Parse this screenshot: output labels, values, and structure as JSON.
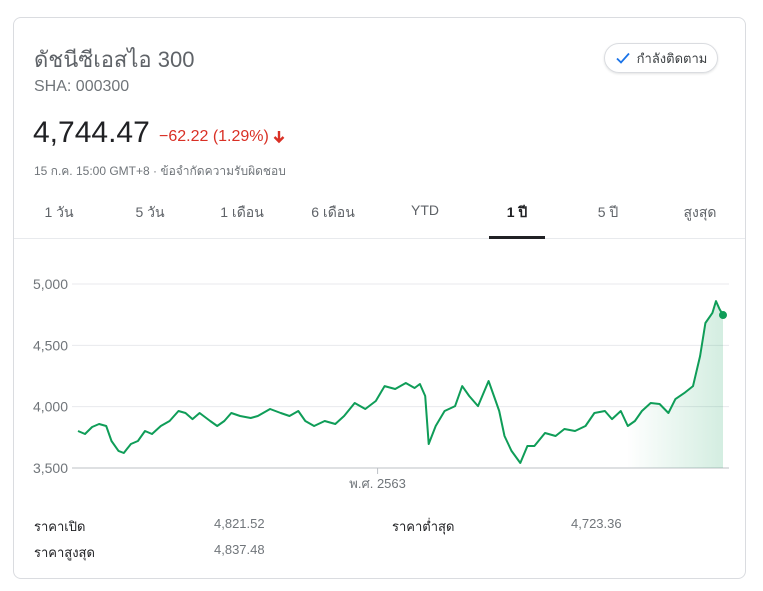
{
  "header": {
    "title": "ดัชนีซีเอสไอ 300",
    "ticker": "SHA: 000300",
    "follow_label": "กำลังติดตาม"
  },
  "quote": {
    "price": "4,744.47",
    "change": "−62.22 (1.29%)",
    "direction": "down",
    "timestamp": "15 ก.ค. 15:00 GMT+8 · ",
    "disclaimer": "ข้อจำกัดความรับผิดชอบ"
  },
  "tabs": [
    {
      "label": "1 วัน"
    },
    {
      "label": "5 วัน"
    },
    {
      "label": "1 เดือน"
    },
    {
      "label": "6 เดือน"
    },
    {
      "label": "YTD"
    },
    {
      "label": "1 ปี",
      "active": true
    },
    {
      "label": "5 ปี"
    },
    {
      "label": "สูงสุด"
    }
  ],
  "stats": {
    "open_label": "ราคาเปิด",
    "open": "4,821.52",
    "low_label": "ราคาต่ำสุด",
    "low": "4,723.36",
    "high_label": "ราคาสูงสุด",
    "high": "4,837.48"
  },
  "colors": {
    "line": "#0f9d58",
    "down": "#d93025",
    "check": "#1a73e8"
  },
  "chart_data": {
    "type": "line",
    "ylim": [
      3500,
      5000
    ],
    "xlim": [
      "2019-07-15",
      "2020-07-15"
    ],
    "yticks": [
      "5,000",
      "4,500",
      "4,000",
      "3,500"
    ],
    "ytick_values": [
      5000,
      4500,
      4000,
      3500
    ],
    "xticks": [
      {
        "label": "พ.ศ. 2563",
        "date": "2020-01-01"
      }
    ],
    "grid": true,
    "x": [
      "2019-07-15",
      "2019-07-19",
      "2019-07-23",
      "2019-07-27",
      "2019-07-31",
      "2019-08-03",
      "2019-08-07",
      "2019-08-10",
      "2019-08-14",
      "2019-08-18",
      "2019-08-22",
      "2019-08-26",
      "2019-08-31",
      "2019-09-05",
      "2019-09-10",
      "2019-09-14",
      "2019-09-18",
      "2019-09-22",
      "2019-09-28",
      "2019-10-02",
      "2019-10-06",
      "2019-10-10",
      "2019-10-15",
      "2019-10-21",
      "2019-10-25",
      "2019-11-01",
      "2019-11-07",
      "2019-11-12",
      "2019-11-17",
      "2019-11-21",
      "2019-11-26",
      "2019-12-02",
      "2019-12-08",
      "2019-12-13",
      "2019-12-19",
      "2019-12-25",
      "2019-12-31",
      "2020-01-05",
      "2020-01-11",
      "2020-01-17",
      "2020-01-22",
      "2020-01-25",
      "2020-01-28",
      "2020-01-30",
      "2020-02-03",
      "2020-02-08",
      "2020-02-14",
      "2020-02-18",
      "2020-02-22",
      "2020-02-27",
      "2020-03-04",
      "2020-03-08",
      "2020-03-10",
      "2020-03-13",
      "2020-03-17",
      "2020-03-22",
      "2020-03-26",
      "2020-03-30",
      "2020-04-05",
      "2020-04-11",
      "2020-04-16",
      "2020-04-22",
      "2020-04-28",
      "2020-05-03",
      "2020-05-09",
      "2020-05-13",
      "2020-05-18",
      "2020-05-22",
      "2020-05-26",
      "2020-05-30",
      "2020-06-04",
      "2020-06-09",
      "2020-06-14",
      "2020-06-18",
      "2020-06-23",
      "2020-06-28",
      "2020-07-02",
      "2020-07-05",
      "2020-07-09",
      "2020-07-11",
      "2020-07-13",
      "2020-07-15"
    ],
    "values": [
      3802,
      3777,
      3834,
      3859,
      3842,
      3720,
      3639,
      3622,
      3696,
      3720,
      3802,
      3777,
      3842,
      3883,
      3965,
      3948,
      3899,
      3948,
      3883,
      3842,
      3883,
      3948,
      3924,
      3908,
      3924,
      3981,
      3948,
      3924,
      3965,
      3883,
      3842,
      3883,
      3859,
      3924,
      4030,
      3981,
      4046,
      4168,
      4144,
      4193,
      4152,
      4185,
      4087,
      3696,
      3842,
      3965,
      4005,
      4168,
      4087,
      4005,
      4209,
      4046,
      3965,
      3761,
      3639,
      3541,
      3679,
      3679,
      3785,
      3761,
      3818,
      3802,
      3842,
      3948,
      3965,
      3899,
      3965,
      3842,
      3883,
      3965,
      4030,
      4022,
      3948,
      4062,
      4111,
      4168,
      4413,
      4682,
      4764,
      4861,
      4796,
      4747
    ]
  }
}
